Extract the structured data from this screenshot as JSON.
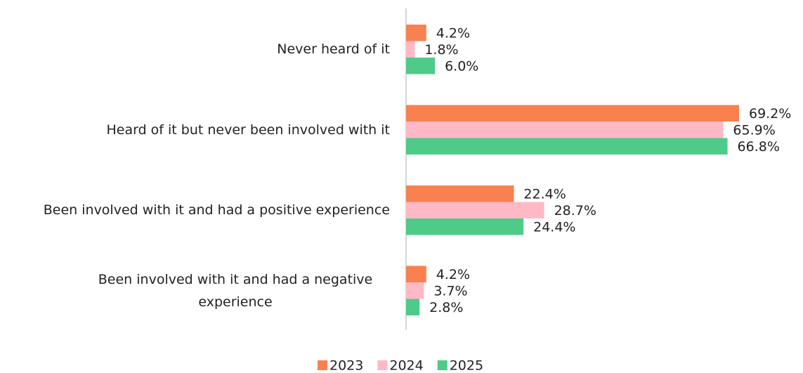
{
  "chart_data": {
    "type": "bar",
    "orientation": "horizontal",
    "categories": [
      "Never heard of it",
      "Heard of it but never been involved with it",
      "Been involved with it and had a positive experience",
      "Been involved with it and had a negative experience"
    ],
    "series": [
      {
        "name": "2023",
        "color": "#f9804f",
        "values": [
          4.2,
          69.2,
          22.4,
          4.2
        ],
        "value_labels": [
          "4.2%",
          "69.2%",
          "22.4%",
          "4.2%"
        ]
      },
      {
        "name": "2024",
        "color": "#ffb8c6",
        "values": [
          1.8,
          65.9,
          28.7,
          3.7
        ],
        "value_labels": [
          "1.8%",
          "65.9%",
          "28.7%",
          "3.7%"
        ]
      },
      {
        "name": "2025",
        "color": "#4ecb88",
        "values": [
          6.0,
          66.8,
          24.4,
          2.8
        ],
        "value_labels": [
          "6.0%",
          "66.8%",
          "24.4%",
          "2.8%"
        ]
      }
    ],
    "legend": "bottom"
  }
}
